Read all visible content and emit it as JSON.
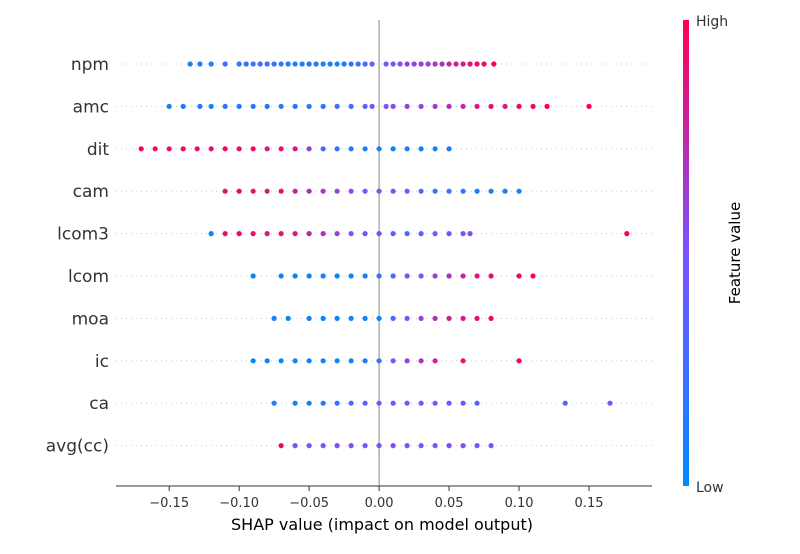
{
  "chart_data": {
    "type": "scatter",
    "subtype": "shap-beeswarm",
    "title": "",
    "xlabel": "SHAP value (impact on model output)",
    "ylabel": "",
    "xlim": [
      -0.188,
      0.195
    ],
    "x_ticks": [
      -0.15,
      -0.1,
      -0.05,
      0.0,
      0.05,
      0.1,
      0.15
    ],
    "x_tick_labels": [
      "−0.15",
      "−0.10",
      "−0.05",
      "0.00",
      "0.05",
      "0.10",
      "0.15"
    ],
    "features": [
      "npm",
      "amc",
      "dit",
      "cam",
      "lcom3",
      "lcom",
      "moa",
      "ic",
      "ca",
      "avg(cc)"
    ],
    "grid": false,
    "colorbar": {
      "label": "Feature value",
      "high_label": "High",
      "low_label": "Low",
      "low_color": "#008bfb",
      "mid_color": "#7c52ff",
      "high_color": "#ff0052"
    },
    "series": [
      {
        "feature": "npm",
        "points": [
          [
            -0.135,
            0.1
          ],
          [
            -0.128,
            0.05
          ],
          [
            -0.12,
            0.1
          ],
          [
            -0.11,
            0.2
          ],
          [
            -0.1,
            0.25
          ],
          [
            -0.095,
            0.2
          ],
          [
            -0.09,
            0.25
          ],
          [
            -0.085,
            0.25
          ],
          [
            -0.08,
            0.25
          ],
          [
            -0.075,
            0.2
          ],
          [
            -0.07,
            0.2
          ],
          [
            -0.065,
            0.15
          ],
          [
            -0.06,
            0.15
          ],
          [
            -0.055,
            0.1
          ],
          [
            -0.05,
            0.15
          ],
          [
            -0.045,
            0.15
          ],
          [
            -0.04,
            0.1
          ],
          [
            -0.035,
            0.1
          ],
          [
            -0.03,
            0.1
          ],
          [
            -0.025,
            0.15
          ],
          [
            -0.02,
            0.2
          ],
          [
            -0.015,
            0.25
          ],
          [
            -0.01,
            0.3
          ],
          [
            -0.005,
            0.35
          ],
          [
            0.005,
            0.45
          ],
          [
            0.01,
            0.5
          ],
          [
            0.015,
            0.55
          ],
          [
            0.02,
            0.6
          ],
          [
            0.025,
            0.6
          ],
          [
            0.03,
            0.65
          ],
          [
            0.035,
            0.6
          ],
          [
            0.04,
            0.65
          ],
          [
            0.045,
            0.7
          ],
          [
            0.05,
            0.75
          ],
          [
            0.055,
            0.8
          ],
          [
            0.06,
            0.85
          ],
          [
            0.065,
            0.9
          ],
          [
            0.07,
            0.95
          ],
          [
            0.075,
            0.95
          ],
          [
            0.082,
            1.0
          ]
        ]
      },
      {
        "feature": "amc",
        "points": [
          [
            -0.15,
            0.1
          ],
          [
            -0.14,
            0.1
          ],
          [
            -0.128,
            0.15
          ],
          [
            -0.12,
            0.1
          ],
          [
            -0.11,
            0.2
          ],
          [
            -0.1,
            0.1
          ],
          [
            -0.09,
            0.15
          ],
          [
            -0.08,
            0.2
          ],
          [
            -0.07,
            0.2
          ],
          [
            -0.06,
            0.15
          ],
          [
            -0.05,
            0.2
          ],
          [
            -0.04,
            0.2
          ],
          [
            -0.03,
            0.25
          ],
          [
            -0.02,
            0.3
          ],
          [
            -0.01,
            0.35
          ],
          [
            -0.005,
            0.4
          ],
          [
            0.005,
            0.5
          ],
          [
            0.01,
            0.55
          ],
          [
            0.02,
            0.6
          ],
          [
            0.03,
            0.6
          ],
          [
            0.04,
            0.65
          ],
          [
            0.05,
            0.7
          ],
          [
            0.06,
            0.75
          ],
          [
            0.07,
            0.85
          ],
          [
            0.08,
            0.9
          ],
          [
            0.09,
            0.85
          ],
          [
            0.1,
            0.95
          ],
          [
            0.11,
            0.95
          ],
          [
            0.12,
            1.0
          ],
          [
            0.15,
            1.0
          ]
        ]
      },
      {
        "feature": "dit",
        "points": [
          [
            -0.17,
            1.0
          ],
          [
            -0.16,
            0.95
          ],
          [
            -0.15,
            0.9
          ],
          [
            -0.14,
            0.95
          ],
          [
            -0.13,
            0.9
          ],
          [
            -0.12,
            0.9
          ],
          [
            -0.11,
            0.95
          ],
          [
            -0.1,
            0.9
          ],
          [
            -0.09,
            0.95
          ],
          [
            -0.08,
            0.85
          ],
          [
            -0.07,
            0.9
          ],
          [
            -0.06,
            0.85
          ],
          [
            -0.05,
            0.6
          ],
          [
            -0.04,
            0.3
          ],
          [
            -0.03,
            0.2
          ],
          [
            -0.02,
            0.15
          ],
          [
            -0.01,
            0.1
          ],
          [
            0.0,
            0.1
          ],
          [
            0.01,
            0.05
          ],
          [
            0.02,
            0.1
          ],
          [
            0.03,
            0.05
          ],
          [
            0.04,
            0.1
          ],
          [
            0.05,
            0.15
          ]
        ]
      },
      {
        "feature": "cam",
        "points": [
          [
            -0.11,
            0.9
          ],
          [
            -0.1,
            0.95
          ],
          [
            -0.09,
            0.9
          ],
          [
            -0.08,
            0.85
          ],
          [
            -0.07,
            0.9
          ],
          [
            -0.06,
            0.8
          ],
          [
            -0.05,
            0.7
          ],
          [
            -0.04,
            0.65
          ],
          [
            -0.03,
            0.6
          ],
          [
            -0.02,
            0.55
          ],
          [
            -0.01,
            0.5
          ],
          [
            0.0,
            0.45
          ],
          [
            0.01,
            0.4
          ],
          [
            0.02,
            0.35
          ],
          [
            0.03,
            0.3
          ],
          [
            0.04,
            0.25
          ],
          [
            0.05,
            0.2
          ],
          [
            0.06,
            0.15
          ],
          [
            0.07,
            0.1
          ],
          [
            0.08,
            0.1
          ],
          [
            0.09,
            0.05
          ],
          [
            0.1,
            0.05
          ]
        ]
      },
      {
        "feature": "lcom3",
        "points": [
          [
            -0.12,
            0.05
          ],
          [
            -0.11,
            0.9
          ],
          [
            -0.1,
            0.95
          ],
          [
            -0.09,
            0.9
          ],
          [
            -0.08,
            0.85
          ],
          [
            -0.07,
            0.9
          ],
          [
            -0.06,
            0.85
          ],
          [
            -0.05,
            0.8
          ],
          [
            -0.04,
            0.7
          ],
          [
            -0.03,
            0.6
          ],
          [
            -0.02,
            0.5
          ],
          [
            -0.01,
            0.45
          ],
          [
            0.0,
            0.4
          ],
          [
            0.01,
            0.35
          ],
          [
            0.02,
            0.3
          ],
          [
            0.03,
            0.35
          ],
          [
            0.04,
            0.4
          ],
          [
            0.05,
            0.45
          ],
          [
            0.06,
            0.5
          ],
          [
            0.065,
            0.55
          ],
          [
            0.177,
            1.0
          ]
        ]
      },
      {
        "feature": "lcom",
        "points": [
          [
            -0.09,
            0.05
          ],
          [
            -0.07,
            0.1
          ],
          [
            -0.06,
            0.05
          ],
          [
            -0.05,
            0.05
          ],
          [
            -0.04,
            0.1
          ],
          [
            -0.03,
            0.05
          ],
          [
            -0.02,
            0.1
          ],
          [
            -0.01,
            0.1
          ],
          [
            0.0,
            0.2
          ],
          [
            0.01,
            0.3
          ],
          [
            0.02,
            0.4
          ],
          [
            0.03,
            0.5
          ],
          [
            0.04,
            0.6
          ],
          [
            0.05,
            0.7
          ],
          [
            0.06,
            0.8
          ],
          [
            0.07,
            0.85
          ],
          [
            0.08,
            0.9
          ],
          [
            0.1,
            0.95
          ],
          [
            0.11,
            1.0
          ]
        ]
      },
      {
        "feature": "moa",
        "points": [
          [
            -0.075,
            0.1
          ],
          [
            -0.065,
            0.05
          ],
          [
            -0.05,
            0.1
          ],
          [
            -0.04,
            0.05
          ],
          [
            -0.03,
            0.05
          ],
          [
            -0.02,
            0.1
          ],
          [
            -0.01,
            0.05
          ],
          [
            0.0,
            0.1
          ],
          [
            0.01,
            0.3
          ],
          [
            0.02,
            0.5
          ],
          [
            0.03,
            0.6
          ],
          [
            0.04,
            0.7
          ],
          [
            0.05,
            0.8
          ],
          [
            0.06,
            0.85
          ],
          [
            0.07,
            0.9
          ],
          [
            0.08,
            0.95
          ]
        ]
      },
      {
        "feature": "ic",
        "points": [
          [
            -0.09,
            0.05
          ],
          [
            -0.08,
            0.1
          ],
          [
            -0.07,
            0.05
          ],
          [
            -0.06,
            0.1
          ],
          [
            -0.05,
            0.05
          ],
          [
            -0.04,
            0.1
          ],
          [
            -0.03,
            0.05
          ],
          [
            -0.02,
            0.1
          ],
          [
            -0.01,
            0.15
          ],
          [
            0.0,
            0.2
          ],
          [
            0.01,
            0.4
          ],
          [
            0.02,
            0.6
          ],
          [
            0.03,
            0.7
          ],
          [
            0.04,
            0.8
          ],
          [
            0.06,
            0.9
          ],
          [
            0.1,
            1.0
          ]
        ]
      },
      {
        "feature": "ca",
        "points": [
          [
            -0.075,
            0.1
          ],
          [
            -0.06,
            0.05
          ],
          [
            -0.05,
            0.1
          ],
          [
            -0.04,
            0.15
          ],
          [
            -0.03,
            0.2
          ],
          [
            -0.02,
            0.3
          ],
          [
            -0.01,
            0.4
          ],
          [
            0.0,
            0.5
          ],
          [
            0.01,
            0.45
          ],
          [
            0.02,
            0.4
          ],
          [
            0.03,
            0.45
          ],
          [
            0.04,
            0.5
          ],
          [
            0.05,
            0.45
          ],
          [
            0.06,
            0.4
          ],
          [
            0.07,
            0.35
          ],
          [
            0.133,
            0.35
          ],
          [
            0.165,
            0.4
          ]
        ]
      },
      {
        "feature": "avg(cc)",
        "points": [
          [
            -0.07,
            0.95
          ],
          [
            -0.06,
            0.5
          ],
          [
            -0.05,
            0.45
          ],
          [
            -0.04,
            0.5
          ],
          [
            -0.03,
            0.55
          ],
          [
            -0.02,
            0.5
          ],
          [
            -0.01,
            0.45
          ],
          [
            0.0,
            0.5
          ],
          [
            0.01,
            0.55
          ],
          [
            0.02,
            0.5
          ],
          [
            0.03,
            0.45
          ],
          [
            0.04,
            0.5
          ],
          [
            0.05,
            0.55
          ],
          [
            0.06,
            0.5
          ],
          [
            0.07,
            0.45
          ],
          [
            0.08,
            0.5
          ]
        ]
      }
    ]
  }
}
